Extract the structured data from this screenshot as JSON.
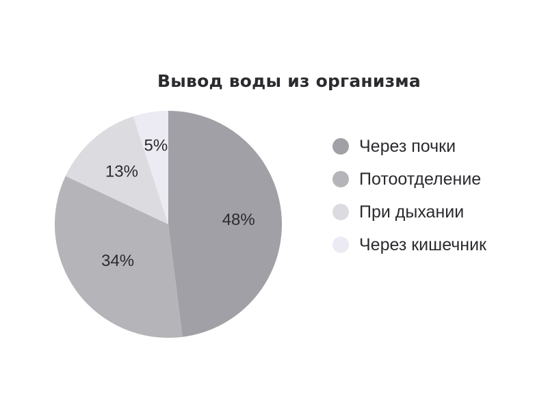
{
  "chart_data": {
    "type": "pie",
    "title": "Вывод воды из организма",
    "slices": [
      {
        "name": "Через почки",
        "value": 48,
        "label": "48%",
        "color": "#a1a0a6"
      },
      {
        "name": "Потоотделение",
        "value": 34,
        "label": "34%",
        "color": "#b5b4b9"
      },
      {
        "name": "При дыхании",
        "value": 13,
        "label": "13%",
        "color": "#dcdbe0"
      },
      {
        "name": "Через кишечник",
        "value": 5,
        "label": "5%",
        "color": "#eceaf2"
      }
    ],
    "legend_position": "right"
  }
}
